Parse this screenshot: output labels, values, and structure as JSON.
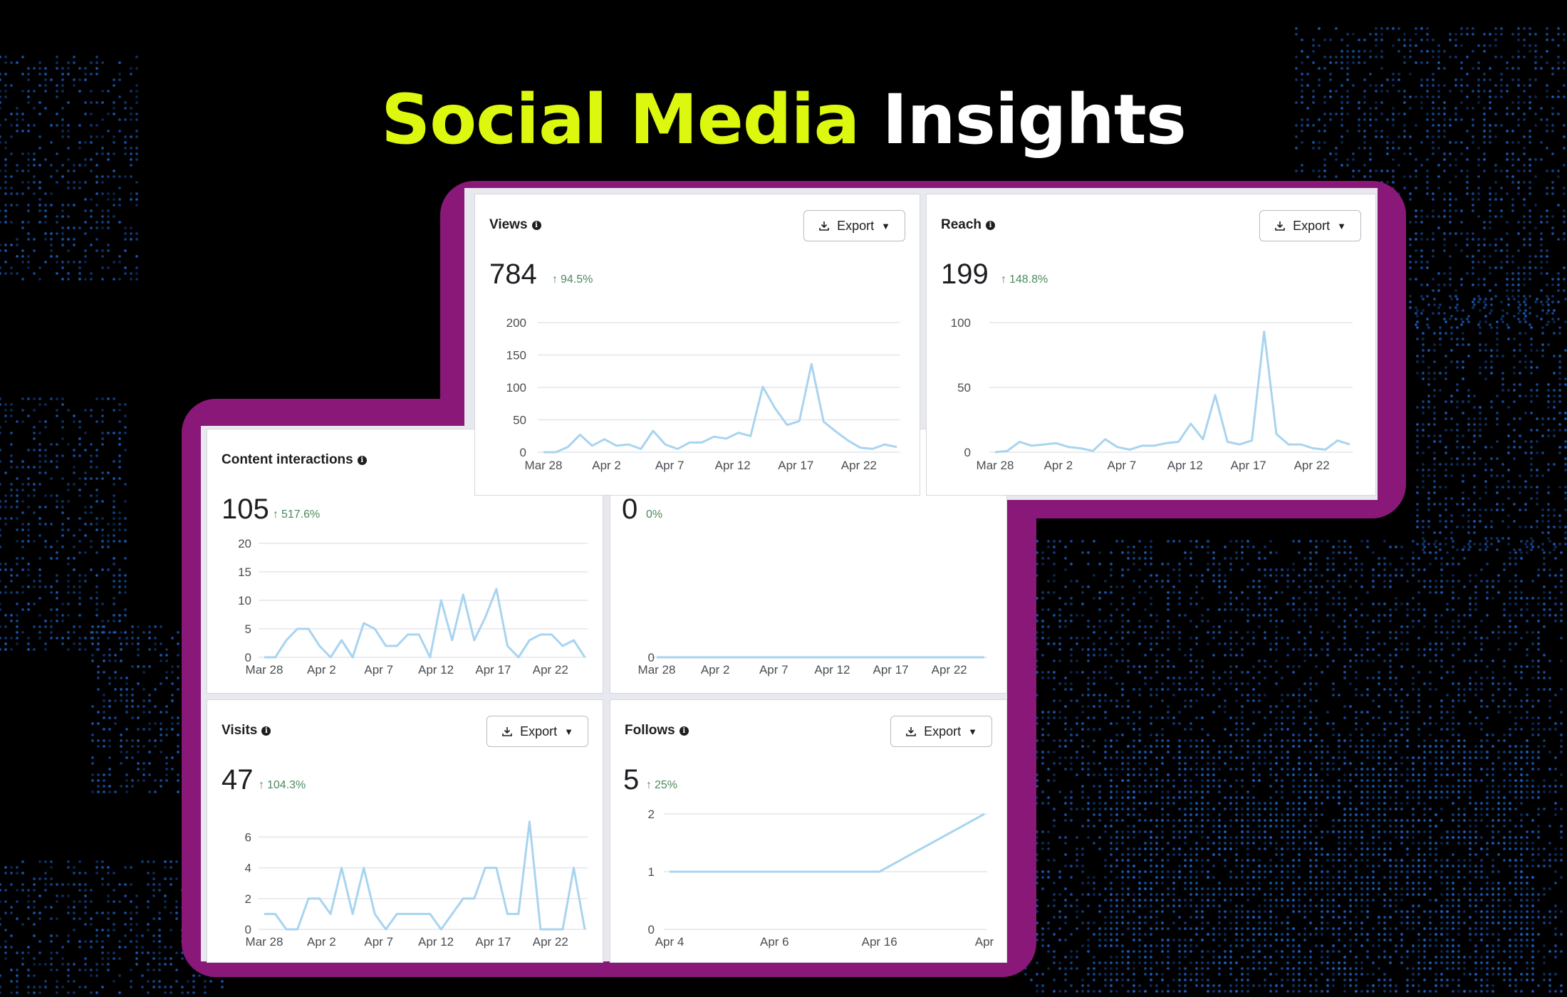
{
  "headline": {
    "accent": "Social Media",
    "rest": "Insights"
  },
  "colors": {
    "accent": "#dcf80f",
    "frame": "#8a1878",
    "line": "#a8d4ef",
    "grid": "#e4e6ea",
    "positive": "#4b8a5e"
  },
  "icons": {
    "info": "info-icon",
    "export": "download-icon",
    "dropdown": "caret-down-icon",
    "increase": "arrow-up-icon"
  },
  "cards": {
    "views": {
      "title": "Views",
      "value": "784",
      "change": "94.5%",
      "export_label": "Export"
    },
    "reach": {
      "title": "Reach",
      "value": "199",
      "change": "148.8%",
      "export_label": "Export"
    },
    "content": {
      "title": "Content interactions",
      "value": "105",
      "change": "517.6%"
    },
    "hidden": {
      "value": "0",
      "change": "0%"
    },
    "visits": {
      "title": "Visits",
      "value": "47",
      "change": "104.3%",
      "export_label": "Export"
    },
    "follows": {
      "title": "Follows",
      "value": "5",
      "change": "25%",
      "export_label": "Export"
    }
  },
  "chart_data": [
    {
      "id": "views",
      "type": "line",
      "xticks": [
        "Mar 28",
        "Apr 2",
        "Apr 7",
        "Apr 12",
        "Apr 17",
        "Apr 22"
      ],
      "yticks": [
        0,
        50,
        100,
        150,
        200
      ],
      "ylim": [
        0,
        200
      ],
      "values": [
        0,
        0,
        8,
        27,
        10,
        20,
        10,
        12,
        5,
        33,
        12,
        5,
        15,
        15,
        24,
        21,
        30,
        25,
        101,
        68,
        42,
        48,
        136,
        47,
        32,
        18,
        7,
        5,
        12,
        8
      ]
    },
    {
      "id": "reach",
      "type": "line",
      "xticks": [
        "Mar 28",
        "Apr 2",
        "Apr 7",
        "Apr 12",
        "Apr 17",
        "Apr 22"
      ],
      "yticks": [
        0,
        50,
        100
      ],
      "ylim": [
        0,
        100
      ],
      "values": [
        0,
        1,
        8,
        5,
        6,
        7,
        4,
        3,
        1,
        10,
        4,
        2,
        5,
        5,
        7,
        8,
        22,
        10,
        44,
        8,
        6,
        9,
        93,
        14,
        6,
        6,
        3,
        2,
        9,
        6
      ]
    },
    {
      "id": "content",
      "type": "line",
      "xticks": [
        "Mar 28",
        "Apr 2",
        "Apr 7",
        "Apr 12",
        "Apr 17",
        "Apr 22"
      ],
      "yticks": [
        0,
        5,
        10,
        15,
        20
      ],
      "ylim": [
        0,
        20
      ],
      "values": [
        0,
        0,
        3,
        5,
        5,
        2,
        0,
        3,
        0,
        6,
        5,
        2,
        2,
        4,
        4,
        0,
        10,
        3,
        11,
        3,
        7,
        12,
        2,
        0,
        3,
        4,
        4,
        2,
        3,
        0
      ]
    },
    {
      "id": "hidden",
      "type": "line",
      "xticks": [
        "Mar 28",
        "Apr 2",
        "Apr 7",
        "Apr 12",
        "Apr 17",
        "Apr 22"
      ],
      "yticks": [
        0
      ],
      "ylim": [
        0,
        1
      ],
      "values": [
        0,
        0
      ]
    },
    {
      "id": "visits",
      "type": "line",
      "xticks": [
        "Mar 28",
        "Apr 2",
        "Apr 7",
        "Apr 12",
        "Apr 17",
        "Apr 22"
      ],
      "yticks": [
        0,
        2,
        4,
        6
      ],
      "ylim": [
        0,
        7.5
      ],
      "values": [
        1,
        1,
        0,
        0,
        2,
        2,
        1,
        4,
        1,
        4,
        1,
        0,
        1,
        1,
        1,
        1,
        0,
        1,
        2,
        2,
        4,
        4,
        1,
        1,
        7,
        0,
        0,
        0,
        4,
        0
      ]
    },
    {
      "id": "follows",
      "type": "line",
      "xticks": [
        "Apr 4",
        "Apr 6",
        "Apr 16",
        "Apr"
      ],
      "yticks": [
        0,
        1,
        2
      ],
      "ylim": [
        0,
        2
      ],
      "values": [
        1,
        1,
        1,
        2
      ]
    }
  ]
}
